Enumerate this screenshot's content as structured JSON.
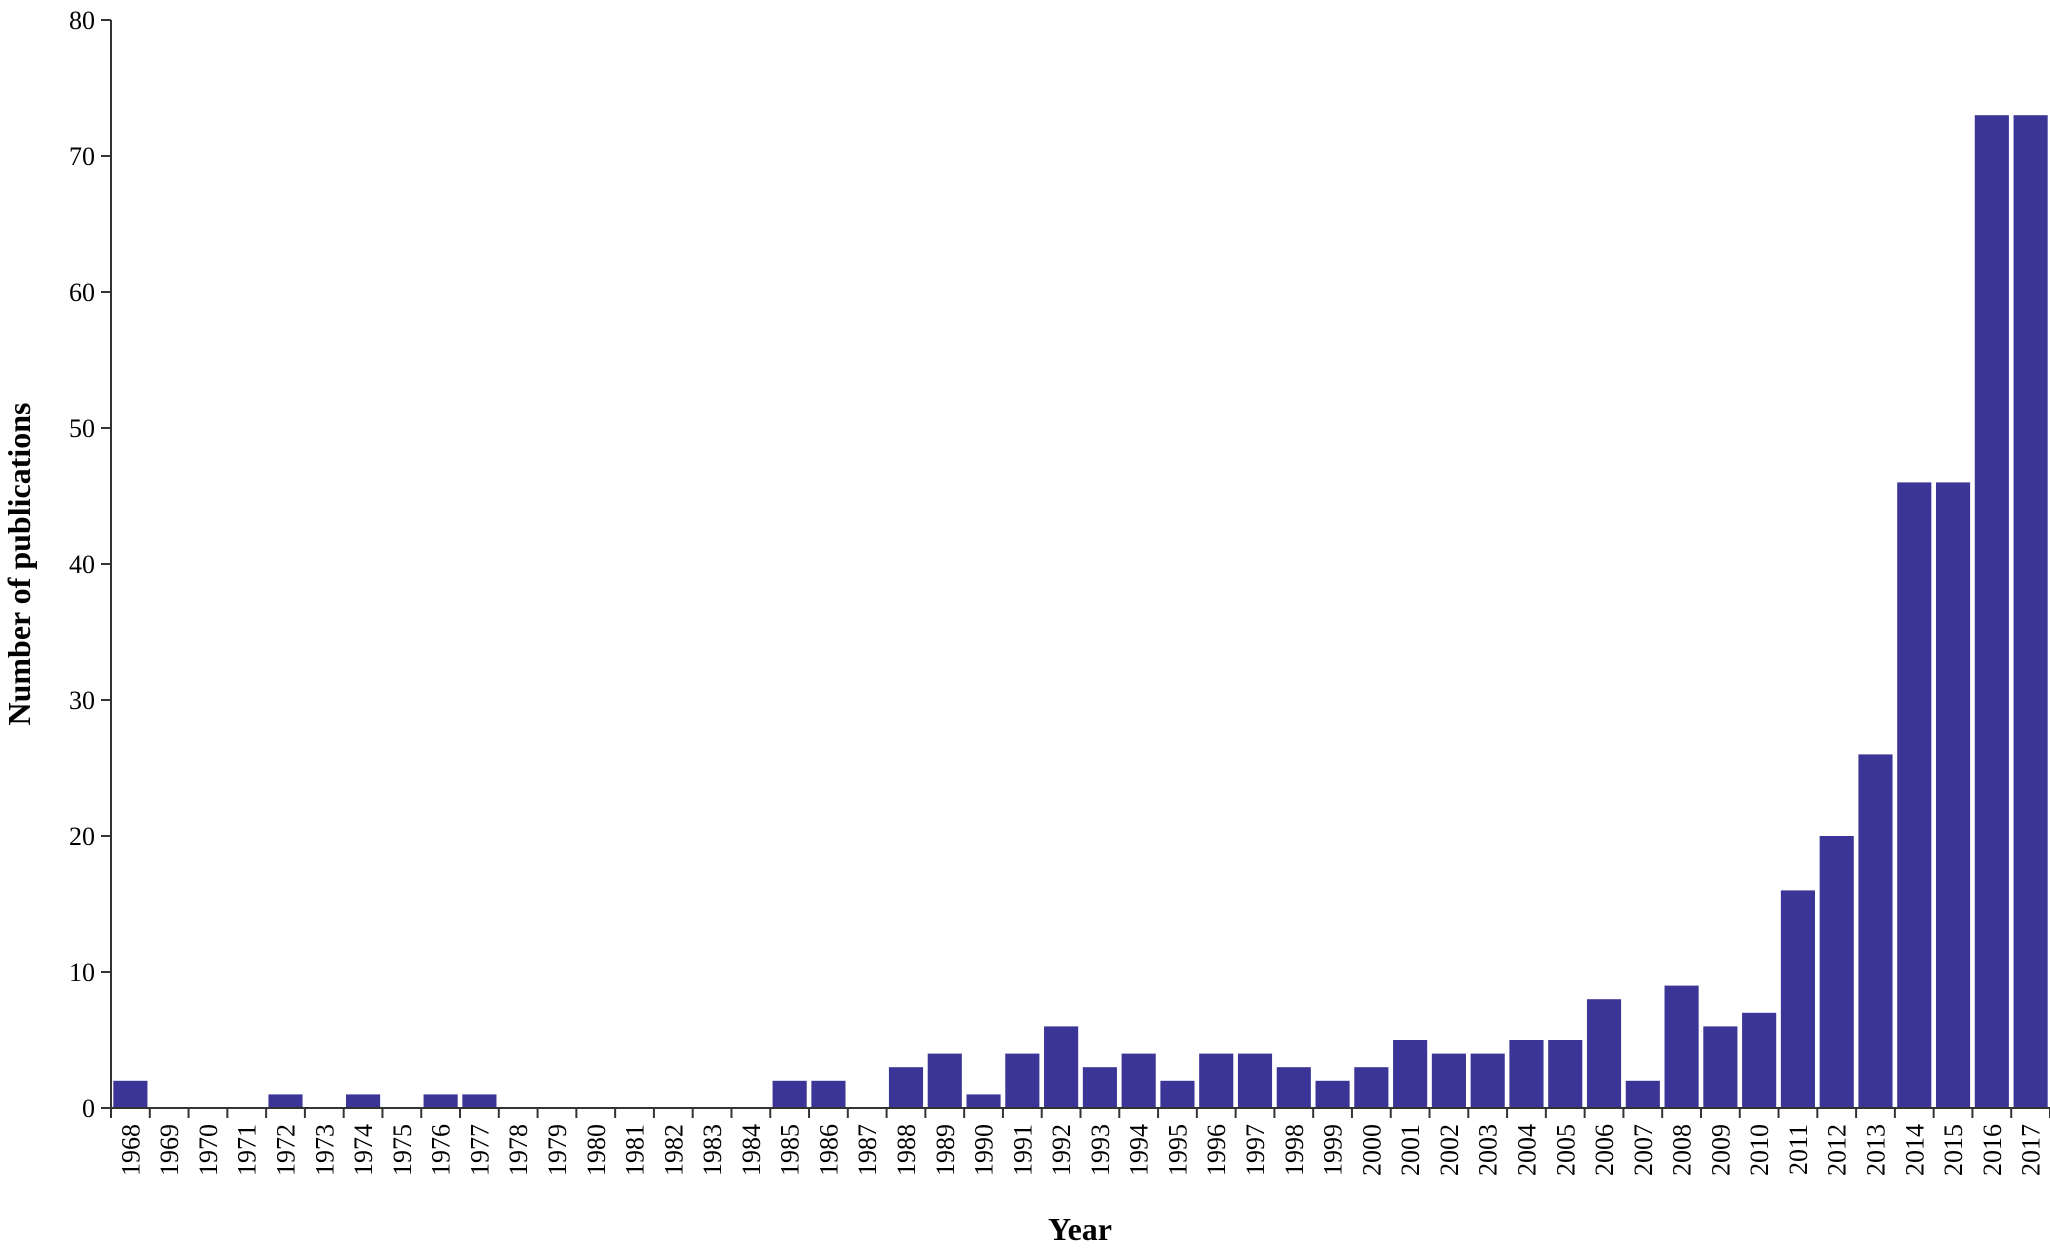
{
  "chart_data": {
    "type": "bar",
    "title": "",
    "xlabel": "Year",
    "ylabel": "Number of publications",
    "ylim": [
      0,
      80
    ],
    "yticks": [
      0,
      10,
      20,
      30,
      40,
      50,
      60,
      70,
      80
    ],
    "grid": false,
    "bar_color": "#3a3596",
    "categories": [
      "1968",
      "1969",
      "1970",
      "1971",
      "1972",
      "1973",
      "1974",
      "1975",
      "1976",
      "1977",
      "1978",
      "1979",
      "1980",
      "1981",
      "1982",
      "1983",
      "1984",
      "1985",
      "1986",
      "1987",
      "1988",
      "1989",
      "1990",
      "1991",
      "1992",
      "1993",
      "1994",
      "1995",
      "1996",
      "1997",
      "1998",
      "1999",
      "2000",
      "2001",
      "2002",
      "2003",
      "2004",
      "2005",
      "2006",
      "2007",
      "2008",
      "2009",
      "2010",
      "2011",
      "2012",
      "2013",
      "2014",
      "2015",
      "2016",
      "2017"
    ],
    "values": [
      2,
      0,
      0,
      0,
      1,
      0,
      1,
      0,
      1,
      1,
      0,
      0,
      0,
      0,
      0,
      0,
      0,
      2,
      2,
      0,
      3,
      4,
      1,
      4,
      6,
      3,
      4,
      2,
      4,
      4,
      3,
      2,
      3,
      5,
      4,
      4,
      5,
      5,
      8,
      2,
      9,
      6,
      7,
      16,
      20,
      26,
      46,
      46,
      73,
      73
    ]
  }
}
